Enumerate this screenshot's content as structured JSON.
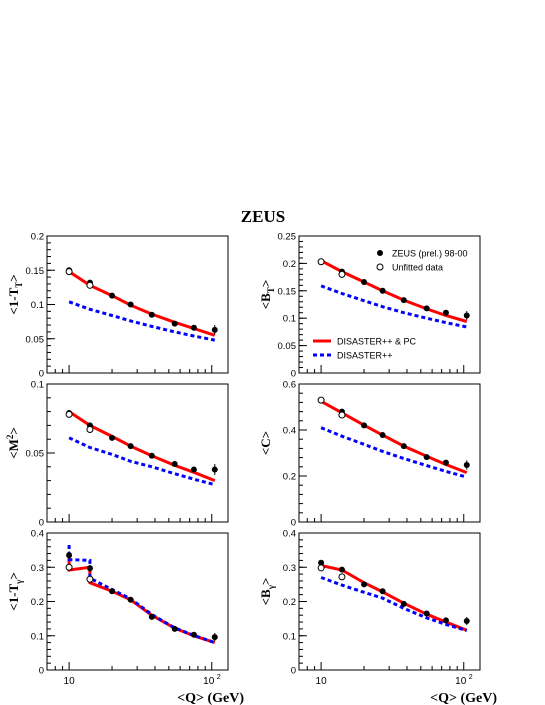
{
  "figure": {
    "title": "ZEUS",
    "xlabel": "<Q> (GeV)",
    "legend": {
      "position": "top-right of upper-right panel",
      "entries": [
        {
          "label": "ZEUS (prel.) 98-00",
          "marker": "filled-circle"
        },
        {
          "label": "Unfitted data",
          "marker": "open-circle"
        },
        {
          "label": "DISASTER++ & PC",
          "line": "solid",
          "color": "#ff0000"
        },
        {
          "label": "DISASTER++",
          "line": "dashed",
          "color": "#0000ff"
        }
      ]
    },
    "colors": {
      "fit": "#ff0000",
      "nlo": "#0000ff",
      "data": "#000000"
    }
  },
  "chart_data": [
    {
      "type": "line",
      "title": "",
      "ylabel": "<1-T_T>",
      "xlabel": "",
      "xscale": "log",
      "xlim": [
        7,
        130
      ],
      "ylim": [
        0,
        0.2
      ],
      "yticks": [
        "0",
        "0.05",
        "0.1",
        "0.15",
        "0.2"
      ],
      "xticks": [],
      "series": [
        {
          "name": "ZEUS (prel.) 98-00",
          "kind": "points",
          "x": [
            10,
            14,
            20,
            27,
            38,
            55,
            75,
            105
          ],
          "y": [
            0.15,
            0.132,
            0.113,
            0.1,
            0.085,
            0.072,
            0.066,
            0.063
          ],
          "err": [
            0.004,
            0.003,
            0.002,
            0.002,
            0.002,
            0.002,
            0.003,
            0.007
          ]
        },
        {
          "name": "Unfitted data",
          "kind": "open",
          "x": [
            10,
            14
          ],
          "y": [
            0.148,
            0.128
          ],
          "err": [
            0,
            0
          ]
        },
        {
          "name": "DISASTER++ & PC",
          "kind": "solid",
          "x": [
            10,
            14,
            20,
            27,
            38,
            55,
            75,
            105
          ],
          "y": [
            0.148,
            0.128,
            0.113,
            0.099,
            0.086,
            0.074,
            0.065,
            0.055
          ]
        },
        {
          "name": "DISASTER++",
          "kind": "dashed",
          "x": [
            10,
            14,
            20,
            27,
            38,
            55,
            75,
            105
          ],
          "y": [
            0.104,
            0.093,
            0.084,
            0.076,
            0.068,
            0.06,
            0.054,
            0.048
          ]
        }
      ]
    },
    {
      "type": "line",
      "title": "",
      "ylabel": "<B_T>",
      "xlabel": "",
      "xscale": "log",
      "xlim": [
        7,
        130
      ],
      "ylim": [
        0,
        0.25
      ],
      "yticks": [
        "0",
        "0.05",
        "0.1",
        "0.15",
        "0.2",
        "0.25"
      ],
      "xticks": [],
      "series": [
        {
          "name": "ZEUS (prel.) 98-00",
          "kind": "points",
          "x": [
            10,
            14,
            20,
            27,
            38,
            55,
            75,
            105
          ],
          "y": [
            0.203,
            0.185,
            0.166,
            0.15,
            0.133,
            0.118,
            0.11,
            0.105
          ],
          "err": [
            0.003,
            0.003,
            0.002,
            0.002,
            0.002,
            0.002,
            0.004,
            0.008
          ]
        },
        {
          "name": "Unfitted data",
          "kind": "open",
          "x": [
            10,
            14
          ],
          "y": [
            0.203,
            0.18
          ],
          "err": [
            0,
            0
          ]
        },
        {
          "name": "DISASTER++ & PC",
          "kind": "solid",
          "x": [
            10,
            14,
            20,
            27,
            38,
            55,
            75,
            105
          ],
          "y": [
            0.205,
            0.185,
            0.166,
            0.15,
            0.133,
            0.117,
            0.105,
            0.094
          ]
        },
        {
          "name": "DISASTER++",
          "kind": "dashed",
          "x": [
            10,
            14,
            20,
            27,
            38,
            55,
            75,
            105
          ],
          "y": [
            0.159,
            0.145,
            0.132,
            0.121,
            0.11,
            0.1,
            0.092,
            0.084
          ]
        }
      ]
    },
    {
      "type": "line",
      "title": "",
      "ylabel": "<M^2>",
      "xlabel": "",
      "xscale": "log",
      "xlim": [
        7,
        130
      ],
      "ylim": [
        0,
        0.1
      ],
      "yticks": [
        "0",
        "0.05",
        "0.1"
      ],
      "xticks": [],
      "series": [
        {
          "name": "ZEUS (prel.) 98-00",
          "kind": "points",
          "x": [
            10,
            14,
            20,
            27,
            38,
            55,
            75,
            105
          ],
          "y": [
            0.079,
            0.07,
            0.061,
            0.055,
            0.048,
            0.042,
            0.038,
            0.038
          ],
          "err": [
            0.002,
            0.002,
            0.001,
            0.001,
            0.001,
            0.001,
            0.002,
            0.004
          ]
        },
        {
          "name": "Unfitted data",
          "kind": "open",
          "x": [
            10,
            14
          ],
          "y": [
            0.078,
            0.067
          ],
          "err": [
            0,
            0
          ]
        },
        {
          "name": "DISASTER++ & PC",
          "kind": "solid",
          "x": [
            10,
            14,
            20,
            27,
            38,
            55,
            75,
            105
          ],
          "y": [
            0.08,
            0.07,
            0.062,
            0.055,
            0.048,
            0.041,
            0.036,
            0.03
          ]
        },
        {
          "name": "DISASTER++",
          "kind": "dashed",
          "x": [
            10,
            14,
            20,
            27,
            38,
            55,
            75,
            105
          ],
          "y": [
            0.061,
            0.054,
            0.049,
            0.044,
            0.04,
            0.035,
            0.031,
            0.027
          ]
        }
      ]
    },
    {
      "type": "line",
      "title": "",
      "ylabel": "<C>",
      "xlabel": "",
      "xscale": "log",
      "xlim": [
        7,
        130
      ],
      "ylim": [
        0,
        0.6
      ],
      "yticks": [
        "0",
        "0.2",
        "0.4",
        "0.6"
      ],
      "xticks": [],
      "series": [
        {
          "name": "ZEUS (prel.) 98-00",
          "kind": "points",
          "x": [
            10,
            14,
            20,
            27,
            38,
            55,
            75,
            105
          ],
          "y": [
            0.53,
            0.48,
            0.42,
            0.378,
            0.33,
            0.282,
            0.258,
            0.248
          ],
          "err": [
            0.01,
            0.008,
            0.006,
            0.005,
            0.005,
            0.005,
            0.01,
            0.02
          ]
        },
        {
          "name": "Unfitted data",
          "kind": "open",
          "x": [
            10,
            14
          ],
          "y": [
            0.53,
            0.465
          ],
          "err": [
            0,
            0
          ]
        },
        {
          "name": "DISASTER++ & PC",
          "kind": "solid",
          "x": [
            10,
            14,
            20,
            27,
            38,
            55,
            75,
            105
          ],
          "y": [
            0.525,
            0.475,
            0.421,
            0.378,
            0.33,
            0.286,
            0.25,
            0.215
          ]
        },
        {
          "name": "DISASTER++",
          "kind": "dashed",
          "x": [
            10,
            14,
            20,
            27,
            38,
            55,
            75,
            105
          ],
          "y": [
            0.41,
            0.373,
            0.338,
            0.307,
            0.276,
            0.245,
            0.22,
            0.195
          ]
        }
      ]
    },
    {
      "type": "line",
      "title": "",
      "ylabel": "<1-T_γ>",
      "xlabel": "<Q> (GeV)",
      "xscale": "log",
      "xlim": [
        7,
        130
      ],
      "ylim": [
        0,
        0.4
      ],
      "yticks": [
        "0",
        "0.1",
        "0.2",
        "0.3",
        "0.4"
      ],
      "xticks": [
        "10",
        "10^2"
      ],
      "series": [
        {
          "name": "ZEUS (prel.) 98-00",
          "kind": "points",
          "x": [
            10,
            14,
            20,
            27,
            38,
            55,
            75,
            105
          ],
          "y": [
            0.335,
            0.297,
            0.23,
            0.205,
            0.155,
            0.12,
            0.103,
            0.096
          ],
          "err": [
            0.012,
            0.01,
            0.005,
            0.005,
            0.004,
            0.003,
            0.005,
            0.012
          ]
        },
        {
          "name": "Unfitted data",
          "kind": "open",
          "x": [
            10,
            14
          ],
          "y": [
            0.3,
            0.265
          ],
          "err": [
            0,
            0
          ]
        },
        {
          "name": "DISASTER++ & PC",
          "kind": "solid",
          "x": [
            10,
            10,
            14,
            14,
            20,
            27,
            38,
            55,
            75,
            105
          ],
          "y": [
            0.33,
            0.292,
            0.3,
            0.255,
            0.23,
            0.205,
            0.16,
            0.122,
            0.1,
            0.08
          ]
        },
        {
          "name": "DISASTER++",
          "kind": "dashed",
          "x": [
            10,
            10,
            14,
            14,
            20,
            27,
            38,
            55,
            75,
            105
          ],
          "y": [
            0.365,
            0.322,
            0.32,
            0.268,
            0.235,
            0.208,
            0.162,
            0.123,
            0.101,
            0.08
          ]
        }
      ]
    },
    {
      "type": "line",
      "title": "",
      "ylabel": "<B_γ>",
      "xlabel": "<Q> (GeV)",
      "xscale": "log",
      "xlim": [
        7,
        130
      ],
      "ylim": [
        0,
        0.4
      ],
      "yticks": [
        "0",
        "0.1",
        "0.2",
        "0.3",
        "0.4"
      ],
      "xticks": [
        "10",
        "10^2"
      ],
      "series": [
        {
          "name": "ZEUS (prel.) 98-00",
          "kind": "points",
          "x": [
            10,
            14,
            20,
            27,
            38,
            55,
            75,
            105
          ],
          "y": [
            0.313,
            0.293,
            0.25,
            0.23,
            0.193,
            0.165,
            0.145,
            0.143
          ],
          "err": [
            0.005,
            0.006,
            0.004,
            0.004,
            0.004,
            0.004,
            0.006,
            0.012
          ]
        },
        {
          "name": "Unfitted data",
          "kind": "open",
          "x": [
            10,
            14
          ],
          "y": [
            0.298,
            0.272
          ],
          "err": [
            0,
            0
          ]
        },
        {
          "name": "DISASTER++ & PC",
          "kind": "solid",
          "x": [
            10,
            14,
            20,
            27,
            38,
            55,
            75,
            105
          ],
          "y": [
            0.305,
            0.292,
            0.255,
            0.228,
            0.195,
            0.163,
            0.14,
            0.116
          ]
        },
        {
          "name": "DISASTER++",
          "kind": "dashed",
          "x": [
            10,
            14,
            20,
            27,
            38,
            55,
            75,
            105
          ],
          "y": [
            0.27,
            0.248,
            0.227,
            0.21,
            0.18,
            0.152,
            0.133,
            0.115
          ]
        }
      ]
    }
  ]
}
